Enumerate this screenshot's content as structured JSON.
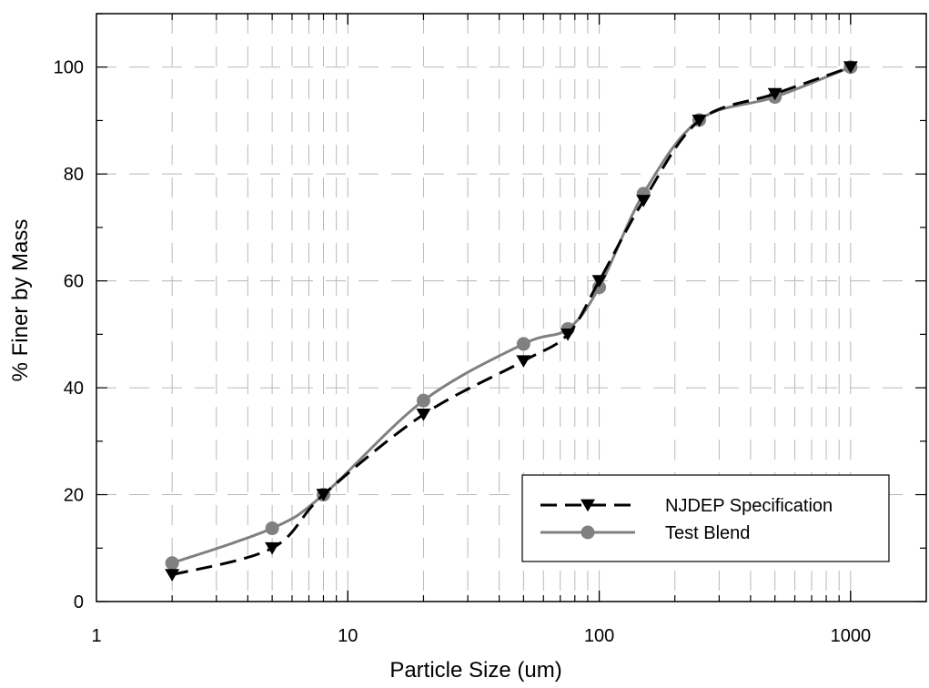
{
  "chart_data": {
    "type": "line",
    "title": "",
    "xlabel": "Particle Size (um)",
    "ylabel": "% Finer by Mass",
    "x_scale": "log",
    "xlim": [
      1,
      2000
    ],
    "ylim": [
      0,
      110
    ],
    "x_ticks": [
      1,
      10,
      100,
      1000
    ],
    "x_tick_labels": [
      "1",
      "10",
      "100",
      "1000"
    ],
    "y_ticks": [
      0,
      20,
      40,
      60,
      80,
      100
    ],
    "y_tick_labels": [
      "0",
      "20",
      "40",
      "60",
      "80",
      "100"
    ],
    "grid": true,
    "legend_position": "bottom-right",
    "series": [
      {
        "name": "NJDEP Specification",
        "line_style": "dashed",
        "marker": "triangle-down",
        "color": "#000000",
        "x": [
          2,
          5,
          8,
          20,
          50,
          75,
          100,
          150,
          250,
          500,
          1000
        ],
        "y": [
          5,
          10,
          20,
          35,
          45,
          50,
          60,
          75,
          90,
          95,
          100
        ]
      },
      {
        "name": "Test Blend",
        "line_style": "solid",
        "marker": "circle",
        "color": "#808080",
        "x": [
          2,
          5,
          8,
          20,
          50,
          75,
          100,
          150,
          250,
          500,
          1000
        ],
        "y": [
          7.2,
          13.7,
          20.0,
          37.6,
          48.2,
          51.0,
          58.8,
          76.3,
          90.1,
          94.4,
          100
        ]
      }
    ]
  }
}
